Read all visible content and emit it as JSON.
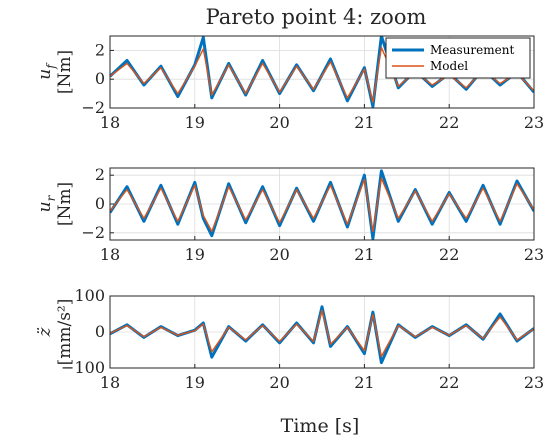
{
  "title": "Pareto point 4: zoom",
  "xlabel": "Time [s]",
  "colors": {
    "measurement": "#0072BD",
    "model": "#D95319"
  },
  "chart_data": [
    {
      "type": "line",
      "id": "uf",
      "ylabel_main": "u",
      "ylabel_sub": "f",
      "ylabel_unit": "[Nm]",
      "xlim": [
        18,
        23
      ],
      "ylim": [
        -2,
        3
      ],
      "xticks": [
        "18",
        "19",
        "20",
        "21",
        "22",
        "23"
      ],
      "yticks": [
        "-2",
        "0",
        "2"
      ],
      "grid": true,
      "legend": {
        "placement": "top-right",
        "entries": [
          "Measurement",
          "Model"
        ]
      },
      "series": [
        {
          "name": "Measurement",
          "x": [
            18.0,
            18.2,
            18.4,
            18.6,
            18.8,
            19.0,
            19.1,
            19.2,
            19.4,
            19.6,
            19.8,
            20.0,
            20.2,
            20.4,
            20.6,
            20.8,
            21.0,
            21.1,
            21.2,
            21.4,
            21.6,
            21.8,
            22.0,
            22.2,
            22.4,
            22.6,
            22.8,
            23.0
          ],
          "y": [
            0.2,
            1.3,
            -0.4,
            0.9,
            -1.2,
            1.0,
            2.9,
            -1.3,
            1.1,
            -1.1,
            1.3,
            -1.0,
            1.0,
            -0.8,
            1.4,
            -1.5,
            0.8,
            -1.9,
            3.0,
            -0.6,
            0.6,
            -0.5,
            0.4,
            -0.7,
            0.7,
            -0.4,
            0.5,
            -0.9
          ]
        },
        {
          "name": "Model",
          "x": [
            18.0,
            18.2,
            18.4,
            18.6,
            18.8,
            19.0,
            19.1,
            19.2,
            19.4,
            19.6,
            19.8,
            20.0,
            20.2,
            20.4,
            20.6,
            20.8,
            21.0,
            21.1,
            21.2,
            21.4,
            21.6,
            21.8,
            22.0,
            22.2,
            22.4,
            22.6,
            22.8,
            23.0
          ],
          "y": [
            0.2,
            1.1,
            -0.3,
            0.8,
            -1.0,
            0.9,
            2.1,
            -1.1,
            1.0,
            -1.0,
            1.1,
            -0.9,
            0.9,
            -0.7,
            1.2,
            -1.3,
            0.7,
            -1.6,
            2.2,
            -0.5,
            0.5,
            -0.4,
            0.3,
            -0.6,
            0.6,
            -0.3,
            0.4,
            -0.8
          ]
        }
      ]
    },
    {
      "type": "line",
      "id": "ur",
      "ylabel_main": "u",
      "ylabel_sub": "r",
      "ylabel_unit": "[Nm]",
      "xlim": [
        18,
        23
      ],
      "ylim": [
        -2.5,
        2.5
      ],
      "xticks": [
        "18",
        "19",
        "20",
        "21",
        "22",
        "23"
      ],
      "yticks": [
        "-2",
        "0",
        "2"
      ],
      "grid": true,
      "series": [
        {
          "name": "Measurement",
          "x": [
            18.0,
            18.2,
            18.4,
            18.6,
            18.8,
            19.0,
            19.1,
            19.2,
            19.4,
            19.6,
            19.8,
            20.0,
            20.2,
            20.4,
            20.6,
            20.8,
            21.0,
            21.1,
            21.2,
            21.4,
            21.6,
            21.8,
            22.0,
            22.2,
            22.4,
            22.6,
            22.8,
            23.0
          ],
          "y": [
            -0.6,
            1.2,
            -1.2,
            1.3,
            -1.4,
            1.5,
            -1.0,
            -2.2,
            1.4,
            -1.3,
            1.2,
            -1.5,
            1.1,
            -1.2,
            1.5,
            -1.6,
            2.0,
            -2.4,
            2.3,
            -1.2,
            1.0,
            -1.4,
            0.8,
            -1.2,
            1.3,
            -1.4,
            1.6,
            -0.5
          ]
        },
        {
          "name": "Model",
          "x": [
            18.0,
            18.2,
            18.4,
            18.6,
            18.8,
            19.0,
            19.1,
            19.2,
            19.4,
            19.6,
            19.8,
            20.0,
            20.2,
            20.4,
            20.6,
            20.8,
            21.0,
            21.1,
            21.2,
            21.4,
            21.6,
            21.8,
            22.0,
            22.2,
            22.4,
            22.6,
            22.8,
            23.0
          ],
          "y": [
            -0.5,
            1.0,
            -1.0,
            1.1,
            -1.2,
            1.3,
            -0.8,
            -1.9,
            1.2,
            -1.1,
            1.0,
            -1.3,
            1.0,
            -1.0,
            1.3,
            -1.4,
            1.7,
            -1.9,
            1.8,
            -1.0,
            0.9,
            -1.2,
            0.7,
            -1.0,
            1.1,
            -1.2,
            1.4,
            -0.4
          ]
        }
      ]
    },
    {
      "type": "line",
      "id": "zdd",
      "ylabel_main": "z̈",
      "ylabel_unit": "[mm/s²]",
      "xlim": [
        18,
        23
      ],
      "ylim": [
        -100,
        100
      ],
      "xticks": [
        "18",
        "19",
        "20",
        "21",
        "22",
        "23"
      ],
      "yticks": [
        "-100",
        "0",
        "100"
      ],
      "grid": true,
      "series": [
        {
          "name": "Measurement",
          "x": [
            18.0,
            18.2,
            18.4,
            18.6,
            18.8,
            19.0,
            19.1,
            19.2,
            19.4,
            19.6,
            19.8,
            20.0,
            20.2,
            20.4,
            20.5,
            20.6,
            20.8,
            21.0,
            21.1,
            21.2,
            21.4,
            21.6,
            21.8,
            22.0,
            22.2,
            22.4,
            22.6,
            22.8,
            23.0
          ],
          "y": [
            -5,
            20,
            -15,
            15,
            -10,
            5,
            25,
            -70,
            15,
            -25,
            20,
            -30,
            25,
            -30,
            70,
            -40,
            15,
            -60,
            55,
            -85,
            20,
            -15,
            15,
            -10,
            20,
            -20,
            50,
            -25,
            10
          ]
        },
        {
          "name": "Model",
          "x": [
            18.0,
            18.2,
            18.4,
            18.6,
            18.8,
            19.0,
            19.1,
            19.2,
            19.4,
            19.6,
            19.8,
            20.0,
            20.2,
            20.4,
            20.5,
            20.6,
            20.8,
            21.0,
            21.1,
            21.2,
            21.4,
            21.6,
            21.8,
            22.0,
            22.2,
            22.4,
            22.6,
            22.8,
            23.0
          ],
          "y": [
            -4,
            18,
            -13,
            13,
            -9,
            4,
            22,
            -55,
            13,
            -22,
            18,
            -26,
            22,
            -26,
            60,
            -34,
            13,
            -52,
            48,
            -68,
            18,
            -13,
            13,
            -9,
            18,
            -18,
            42,
            -22,
            9
          ]
        }
      ]
    }
  ]
}
